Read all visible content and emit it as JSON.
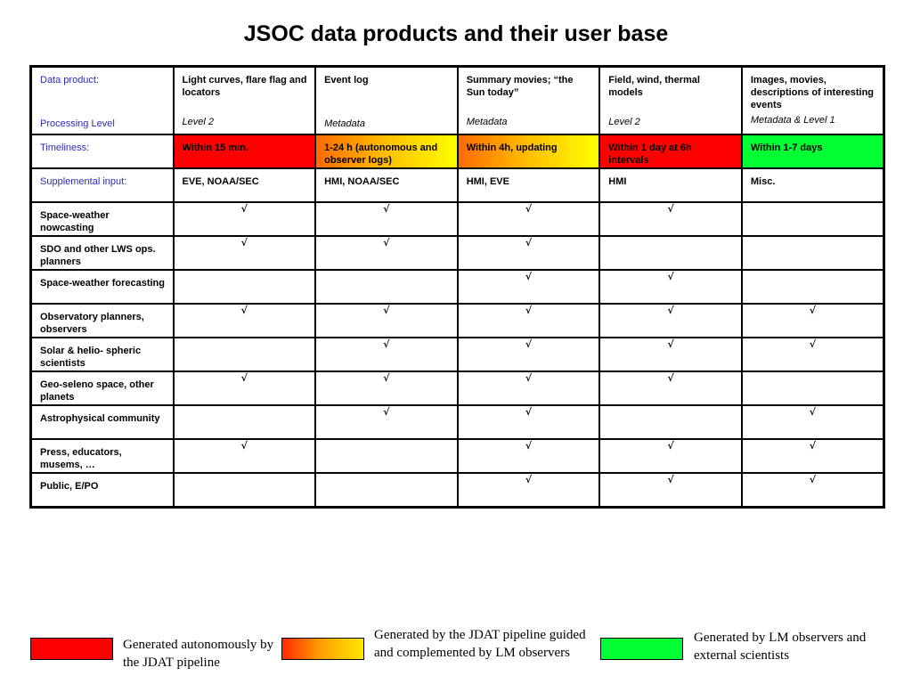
{
  "title": "JSOC data products and their user base",
  "header": {
    "row_label": "Data product:",
    "level_label": "Processing Level",
    "products": [
      {
        "name": "Light curves, flare flag and locators",
        "level": "Level 2"
      },
      {
        "name": "Event log",
        "level": "Metadata"
      },
      {
        "name": "Summary movies; “the Sun today”",
        "level": "Metadata"
      },
      {
        "name": "Field, wind, thermal models",
        "level": "Level 2"
      },
      {
        "name": "Images, movies, descriptions of interesting events",
        "level": "Metadata &  Level 1"
      }
    ]
  },
  "timeliness": {
    "label": "Timeliness:",
    "values": [
      "Within 15 min.",
      "1-24 h (autonomous and observer logs)",
      "Within 4h, updating",
      "Within 1 day at 6h intervals",
      "Within 1-7 days"
    ],
    "colors": [
      "#ff0000",
      "orange-gradient",
      "orange-gradient",
      "#ff0000",
      "#00ff33"
    ]
  },
  "supplemental": {
    "label": "Supplemental input:",
    "values": [
      "EVE, NOAA/SEC",
      "HMI, NOAA/SEC",
      "HMI, EVE",
      "HMI",
      "Misc."
    ]
  },
  "check_symbol": "√",
  "audiences": [
    {
      "name": "Space-weather nowcasting",
      "checks": [
        true,
        true,
        true,
        true,
        false
      ]
    },
    {
      "name": "SDO and other LWS ops. planners",
      "checks": [
        true,
        true,
        true,
        false,
        false
      ]
    },
    {
      "name": "Space-weather forecasting",
      "checks": [
        false,
        false,
        true,
        true,
        false
      ]
    },
    {
      "name": "Observatory planners, observers",
      "checks": [
        true,
        true,
        true,
        true,
        true
      ]
    },
    {
      "name": "Solar & helio- spheric scientists",
      "checks": [
        false,
        true,
        true,
        true,
        true
      ]
    },
    {
      "name": "Geo-seleno space, other planets",
      "checks": [
        true,
        true,
        true,
        true,
        false
      ]
    },
    {
      "name": "Astrophysical community",
      "checks": [
        false,
        true,
        true,
        false,
        true
      ]
    },
    {
      "name": "Press, educators, musems, …",
      "checks": [
        true,
        false,
        true,
        true,
        true
      ]
    },
    {
      "name": "Public, E/PO",
      "checks": [
        false,
        false,
        true,
        true,
        true
      ]
    }
  ],
  "legend": [
    {
      "text": "Generated autonomously by the JDAT pipeline",
      "color": "#ff0000"
    },
    {
      "text": "Generated by the JDAT pipeline guided and complemented by LM observers",
      "color": "orange-gradient"
    },
    {
      "text": "Generated by LM observers and external scientists",
      "color": "#00ff33"
    }
  ]
}
